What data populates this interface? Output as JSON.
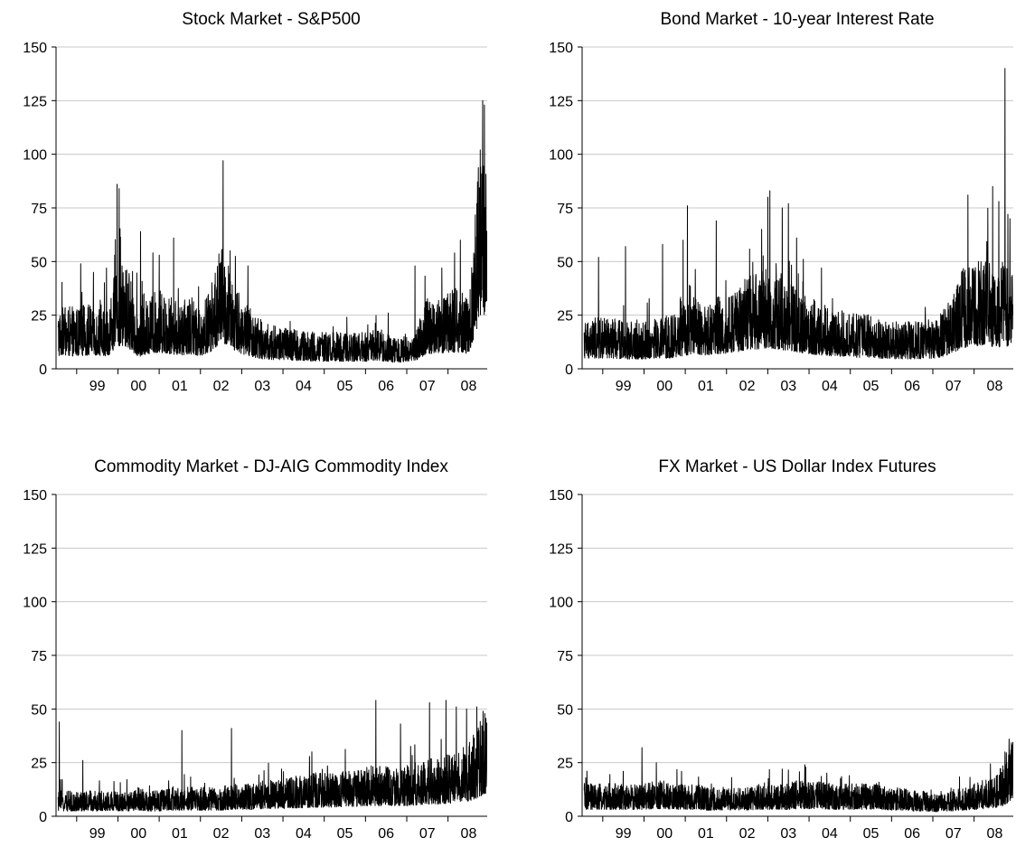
{
  "chart_data": [
    {
      "type": "line",
      "title": "Stock Market - S&P500",
      "xlabel": "",
      "ylabel": "",
      "ylim": [
        0,
        150
      ],
      "yticks": [
        0,
        25,
        50,
        75,
        100,
        125,
        150
      ],
      "xlim": [
        1998.5,
        2008.95
      ],
      "x_tick_labels": [
        "99",
        "00",
        "01",
        "02",
        "03",
        "04",
        "05",
        "06",
        "07",
        "08"
      ],
      "grid": true,
      "legend": "none",
      "baseline": 17,
      "x": [
        1999.0,
        1999.25,
        1999.5,
        1999.75,
        2000.0,
        2000.25,
        2000.5,
        2000.75,
        2001.0,
        2001.25,
        2001.5,
        2001.75,
        2002.0,
        2002.25,
        2002.5,
        2002.75,
        2003.0,
        2003.25,
        2003.5,
        2003.75,
        2004.0,
        2004.25,
        2004.5,
        2004.75,
        2005.0,
        2005.25,
        2005.5,
        2005.75,
        2006.0,
        2006.25,
        2006.5,
        2006.75,
        2007.0,
        2007.25,
        2007.5,
        2007.75,
        2008.0,
        2008.25,
        2008.5,
        2008.75,
        2008.9
      ],
      "values": [
        17,
        18,
        18,
        17,
        30,
        28,
        16,
        20,
        22,
        20,
        18,
        20,
        17,
        23,
        35,
        26,
        20,
        16,
        13,
        12,
        12,
        11,
        11,
        10,
        10,
        10,
        10,
        10,
        10,
        11,
        10,
        8,
        10,
        12,
        20,
        20,
        22,
        22,
        20,
        60,
        70
      ],
      "spikes": [
        {
          "x": 1999.1,
          "y": 49
        },
        {
          "x": 1999.72,
          "y": 47
        },
        {
          "x": 1999.92,
          "y": 53
        },
        {
          "x": 1999.98,
          "y": 86
        },
        {
          "x": 2000.03,
          "y": 84
        },
        {
          "x": 2000.55,
          "y": 64
        },
        {
          "x": 2000.85,
          "y": 54
        },
        {
          "x": 2001.0,
          "y": 53
        },
        {
          "x": 2001.35,
          "y": 61
        },
        {
          "x": 2002.55,
          "y": 97
        },
        {
          "x": 2002.72,
          "y": 55
        },
        {
          "x": 2003.15,
          "y": 48
        },
        {
          "x": 2005.55,
          "y": 24
        },
        {
          "x": 2006.55,
          "y": 26
        },
        {
          "x": 2007.2,
          "y": 48
        },
        {
          "x": 2007.85,
          "y": 47
        },
        {
          "x": 2008.3,
          "y": 60
        },
        {
          "x": 2008.7,
          "y": 77
        },
        {
          "x": 2008.78,
          "y": 102
        },
        {
          "x": 2008.84,
          "y": 125
        },
        {
          "x": 2008.88,
          "y": 123
        }
      ]
    },
    {
      "type": "line",
      "title": "Bond Market - 10-year Interest Rate",
      "xlabel": "",
      "ylabel": "",
      "ylim": [
        0,
        150
      ],
      "yticks": [
        0,
        25,
        50,
        75,
        100,
        125,
        150
      ],
      "xlim": [
        1998.5,
        2008.95
      ],
      "x_tick_labels": [
        "99",
        "00",
        "01",
        "02",
        "03",
        "04",
        "05",
        "06",
        "07",
        "08"
      ],
      "grid": true,
      "legend": "none",
      "baseline": 15,
      "x": [
        1999.0,
        1999.25,
        1999.5,
        1999.75,
        2000.0,
        2000.25,
        2000.5,
        2000.75,
        2001.0,
        2001.25,
        2001.5,
        2001.75,
        2002.0,
        2002.25,
        2002.5,
        2002.75,
        2003.0,
        2003.25,
        2003.5,
        2003.75,
        2004.0,
        2004.25,
        2004.5,
        2004.75,
        2005.0,
        2005.25,
        2005.5,
        2005.75,
        2006.0,
        2006.25,
        2006.5,
        2006.75,
        2007.0,
        2007.25,
        2007.5,
        2007.75,
        2008.0,
        2008.25,
        2008.5,
        2008.75,
        2008.9
      ],
      "values": [
        14,
        14,
        13,
        13,
        13,
        14,
        14,
        15,
        18,
        20,
        18,
        20,
        20,
        22,
        26,
        26,
        28,
        26,
        24,
        22,
        20,
        18,
        17,
        16,
        16,
        15,
        15,
        14,
        13,
        13,
        13,
        13,
        14,
        16,
        22,
        28,
        30,
        32,
        28,
        30,
        28
      ],
      "spikes": [
        {
          "x": 1998.9,
          "y": 52
        },
        {
          "x": 1999.55,
          "y": 57
        },
        {
          "x": 2000.45,
          "y": 58
        },
        {
          "x": 2000.95,
          "y": 60
        },
        {
          "x": 2001.05,
          "y": 76
        },
        {
          "x": 2001.75,
          "y": 69
        },
        {
          "x": 2002.85,
          "y": 65
        },
        {
          "x": 2003.0,
          "y": 80
        },
        {
          "x": 2003.05,
          "y": 83
        },
        {
          "x": 2003.35,
          "y": 75
        },
        {
          "x": 2003.5,
          "y": 77
        },
        {
          "x": 2003.7,
          "y": 61
        },
        {
          "x": 2004.3,
          "y": 47
        },
        {
          "x": 2007.85,
          "y": 81
        },
        {
          "x": 2008.45,
          "y": 85
        },
        {
          "x": 2008.6,
          "y": 78
        },
        {
          "x": 2008.75,
          "y": 140
        },
        {
          "x": 2008.82,
          "y": 72
        },
        {
          "x": 2008.87,
          "y": 70
        }
      ]
    },
    {
      "type": "line",
      "title": "Commodity Market - DJ-AIG Commodity Index",
      "xlabel": "",
      "ylabel": "",
      "ylim": [
        0,
        150
      ],
      "yticks": [
        0,
        25,
        50,
        75,
        100,
        125,
        150
      ],
      "xlim": [
        1998.5,
        2008.95
      ],
      "x_tick_labels": [
        "99",
        "00",
        "01",
        "02",
        "03",
        "04",
        "05",
        "06",
        "07",
        "08"
      ],
      "grid": true,
      "legend": "none",
      "baseline": 8,
      "x": [
        1999.0,
        1999.25,
        1999.5,
        1999.75,
        2000.0,
        2000.25,
        2000.5,
        2000.75,
        2001.0,
        2001.25,
        2001.5,
        2001.75,
        2002.0,
        2002.25,
        2002.5,
        2002.75,
        2003.0,
        2003.25,
        2003.5,
        2003.75,
        2004.0,
        2004.25,
        2004.5,
        2004.75,
        2005.0,
        2005.25,
        2005.5,
        2005.75,
        2006.0,
        2006.25,
        2006.5,
        2006.75,
        2007.0,
        2007.25,
        2007.5,
        2007.75,
        2008.0,
        2008.25,
        2008.5,
        2008.75,
        2008.9
      ],
      "values": [
        7,
        7,
        7,
        7,
        7,
        7,
        8,
        7,
        7,
        8,
        8,
        8,
        8,
        8,
        8,
        9,
        9,
        9,
        10,
        10,
        10,
        11,
        11,
        12,
        12,
        12,
        13,
        13,
        14,
        14,
        14,
        14,
        14,
        15,
        16,
        16,
        17,
        18,
        20,
        25,
        30
      ],
      "spikes": [
        {
          "x": 1998.58,
          "y": 44
        },
        {
          "x": 1999.15,
          "y": 26
        },
        {
          "x": 2001.55,
          "y": 40
        },
        {
          "x": 2002.75,
          "y": 41
        },
        {
          "x": 2004.7,
          "y": 30
        },
        {
          "x": 2006.25,
          "y": 54
        },
        {
          "x": 2006.85,
          "y": 43
        },
        {
          "x": 2007.55,
          "y": 53
        },
        {
          "x": 2007.95,
          "y": 54
        },
        {
          "x": 2008.2,
          "y": 51
        },
        {
          "x": 2008.45,
          "y": 50
        },
        {
          "x": 2008.7,
          "y": 51
        },
        {
          "x": 2008.85,
          "y": 49
        }
      ]
    },
    {
      "type": "line",
      "title": "FX Market - US Dollar Index Futures",
      "xlabel": "",
      "ylabel": "",
      "ylim": [
        0,
        150
      ],
      "yticks": [
        0,
        25,
        50,
        75,
        100,
        125,
        150
      ],
      "xlim": [
        1998.5,
        2008.95
      ],
      "x_tick_labels": [
        "99",
        "00",
        "01",
        "02",
        "03",
        "04",
        "05",
        "06",
        "07",
        "08"
      ],
      "grid": true,
      "legend": "none",
      "baseline": 9,
      "x": [
        1999.0,
        1999.25,
        1999.5,
        1999.75,
        2000.0,
        2000.25,
        2000.5,
        2000.75,
        2001.0,
        2001.25,
        2001.5,
        2001.75,
        2002.0,
        2002.25,
        2002.5,
        2002.75,
        2003.0,
        2003.25,
        2003.5,
        2003.75,
        2004.0,
        2004.25,
        2004.5,
        2004.75,
        2005.0,
        2005.25,
        2005.5,
        2005.75,
        2006.0,
        2006.25,
        2006.5,
        2006.75,
        2007.0,
        2007.25,
        2007.5,
        2007.75,
        2008.0,
        2008.25,
        2008.5,
        2008.75,
        2008.9
      ],
      "values": [
        9,
        9,
        9,
        9,
        9,
        10,
        10,
        9,
        9,
        9,
        8,
        8,
        8,
        8,
        8,
        9,
        9,
        9,
        9,
        10,
        10,
        10,
        9,
        9,
        9,
        9,
        9,
        9,
        8,
        8,
        7,
        7,
        6,
        6,
        7,
        8,
        9,
        10,
        11,
        15,
        22
      ],
      "spikes": [
        {
          "x": 1999.95,
          "y": 32
        },
        {
          "x": 2000.3,
          "y": 25
        },
        {
          "x": 2003.35,
          "y": 22
        },
        {
          "x": 2003.9,
          "y": 24
        },
        {
          "x": 2008.75,
          "y": 30
        },
        {
          "x": 2008.85,
          "y": 36
        }
      ]
    }
  ]
}
